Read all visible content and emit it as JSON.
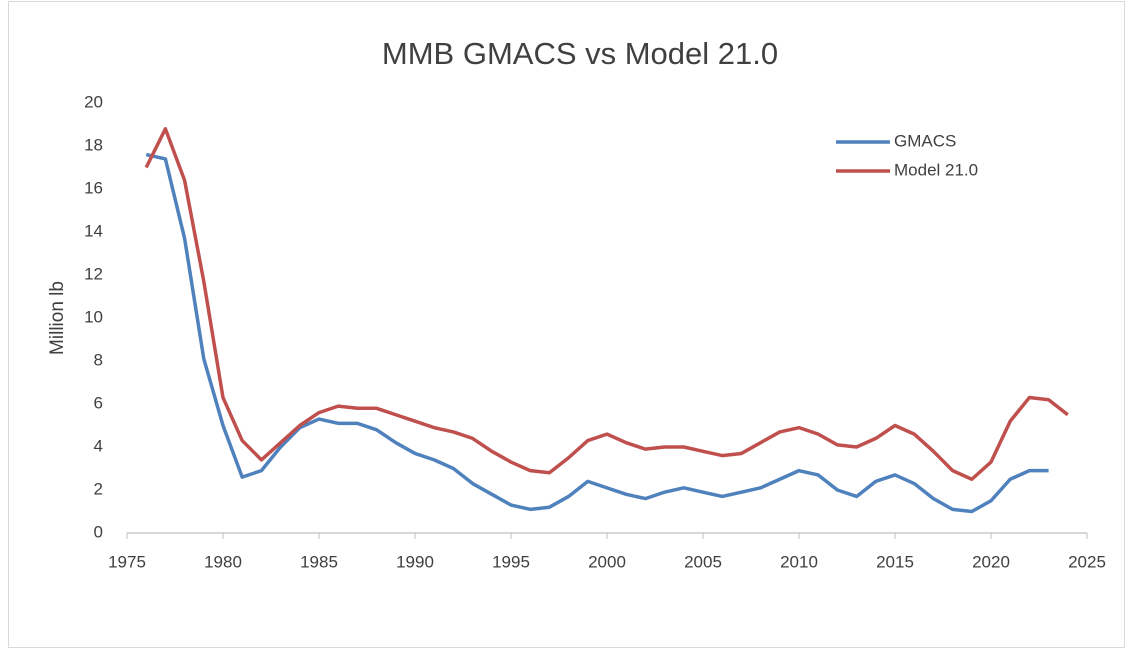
{
  "chart_data": {
    "type": "line",
    "title": "MMB GMACS vs Model 21.0",
    "y_label": "Million lb",
    "x": [
      1976,
      1977,
      1978,
      1979,
      1980,
      1981,
      1982,
      1983,
      1984,
      1985,
      1986,
      1987,
      1988,
      1989,
      1990,
      1991,
      1992,
      1993,
      1994,
      1995,
      1996,
      1997,
      1998,
      1999,
      2000,
      2001,
      2002,
      2003,
      2004,
      2005,
      2006,
      2007,
      2008,
      2009,
      2010,
      2011,
      2012,
      2013,
      2014,
      2015,
      2016,
      2017,
      2018,
      2019,
      2020,
      2021,
      2022,
      2023,
      2024
    ],
    "series": [
      {
        "name": "GMACS",
        "color": "#4f81bd",
        "values": [
          17.6,
          17.4,
          13.7,
          8.1,
          5.0,
          2.6,
          2.9,
          4.0,
          4.9,
          5.3,
          5.1,
          5.1,
          4.8,
          4.2,
          3.7,
          3.4,
          3.0,
          2.3,
          1.8,
          1.3,
          1.1,
          1.2,
          1.7,
          2.4,
          2.1,
          1.8,
          1.6,
          1.9,
          2.1,
          1.9,
          1.7,
          1.9,
          2.1,
          2.5,
          2.9,
          2.7,
          2.0,
          1.7,
          2.4,
          2.7,
          2.3,
          1.6,
          1.1,
          1.0,
          1.5,
          2.5,
          2.9,
          2.9,
          null
        ]
      },
      {
        "name": "Model 21.0",
        "color": "#c0504d",
        "values": [
          17.0,
          18.8,
          16.4,
          11.7,
          6.3,
          4.3,
          3.4,
          4.2,
          5.0,
          5.6,
          5.9,
          5.8,
          5.8,
          5.5,
          5.2,
          4.9,
          4.7,
          4.4,
          3.8,
          3.3,
          2.9,
          2.8,
          3.5,
          4.3,
          4.6,
          4.2,
          3.9,
          4.0,
          4.0,
          3.8,
          3.6,
          3.7,
          4.2,
          4.7,
          4.9,
          4.6,
          4.1,
          4.0,
          4.4,
          5.0,
          4.6,
          3.8,
          2.9,
          2.5,
          3.3,
          5.2,
          6.3,
          6.2,
          5.5
        ]
      }
    ],
    "xlim": [
      1975,
      2025
    ],
    "xticks": [
      1975,
      1980,
      1985,
      1990,
      1995,
      2000,
      2005,
      2010,
      2015,
      2020,
      2025
    ],
    "ylim": [
      0,
      20
    ],
    "yticks": [
      0,
      2,
      4,
      6,
      8,
      10,
      12,
      14,
      16,
      18,
      20
    ],
    "grid": false,
    "legend": "upper right"
  }
}
